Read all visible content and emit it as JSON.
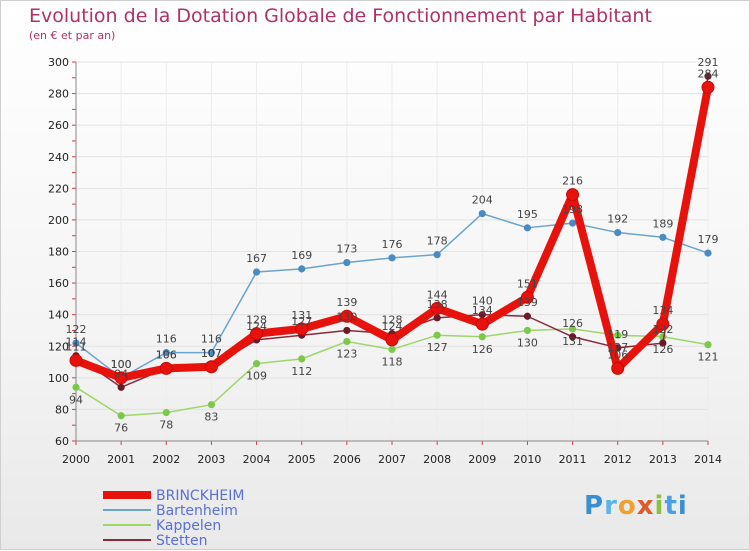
{
  "title": "Evolution de la Dotation Globale de Fonctionnement par Habitant",
  "subtitle": "(en € et par an)",
  "logo": "Proxiti",
  "chart_data": {
    "type": "line",
    "title": "Evolution de la Dotation Globale de Fonctionnement par Habitant",
    "subtitle": "(en € et par an)",
    "xlabel": "",
    "ylabel": "",
    "ylim": [
      60,
      300
    ],
    "yticks": [
      60,
      80,
      100,
      120,
      140,
      160,
      180,
      200,
      220,
      240,
      260,
      280,
      300
    ],
    "grid": true,
    "legend_position": "bottom-left",
    "categories": [
      "2000",
      "2001",
      "2002",
      "2003",
      "2004",
      "2005",
      "2006",
      "2007",
      "2008",
      "2009",
      "2010",
      "2011",
      "2012",
      "2013",
      "2014"
    ],
    "series": [
      {
        "name": "Bartenheim",
        "color": "#6aa3cc",
        "point_color": "#4a8bc4",
        "values": [
          122,
          100,
          116,
          116,
          167,
          169,
          173,
          176,
          178,
          204,
          195,
          198,
          192,
          189,
          179
        ],
        "labels": [
          "122",
          "100",
          "116",
          "116",
          "167",
          "169",
          "173",
          "176",
          "178",
          "204",
          "195",
          "198",
          "192",
          "189",
          "179"
        ]
      },
      {
        "name": "Kappelen",
        "color": "#9ed66a",
        "point_color": "#7cc94a",
        "values": [
          94,
          76,
          78,
          83,
          109,
          112,
          123,
          118,
          127,
          126,
          130,
          131,
          127,
          126,
          121
        ],
        "labels": [
          "94",
          "76",
          "78",
          "83",
          "109",
          "112",
          "123",
          "118",
          "127",
          "126",
          "130",
          "131",
          "127",
          "126",
          "121"
        ]
      },
      {
        "name": "Stetten",
        "color": "#8a2a3a",
        "point_color": "#6a1a28",
        "values": [
          114,
          94,
          106,
          107,
          124,
          127,
          130,
          128,
          138,
          140,
          139,
          126,
          119,
          122,
          291
        ],
        "labels": [
          "114",
          "94",
          "106",
          "107",
          "124",
          "127",
          "130",
          "128",
          "138",
          "140",
          "139",
          "126",
          "119",
          "122",
          "291"
        ]
      },
      {
        "name": "BRINCKHEIM",
        "color": "#e8120c",
        "point_color": "#c40a08",
        "values": [
          111,
          100,
          106,
          107,
          128,
          131,
          139,
          124,
          144,
          134,
          151,
          216,
          106,
          134,
          284
        ],
        "labels": [
          "111",
          "100",
          "106",
          "107",
          "128",
          "131",
          "139",
          "124",
          "144",
          "134",
          "151",
          "216",
          "106",
          "134",
          "284"
        ]
      }
    ]
  }
}
